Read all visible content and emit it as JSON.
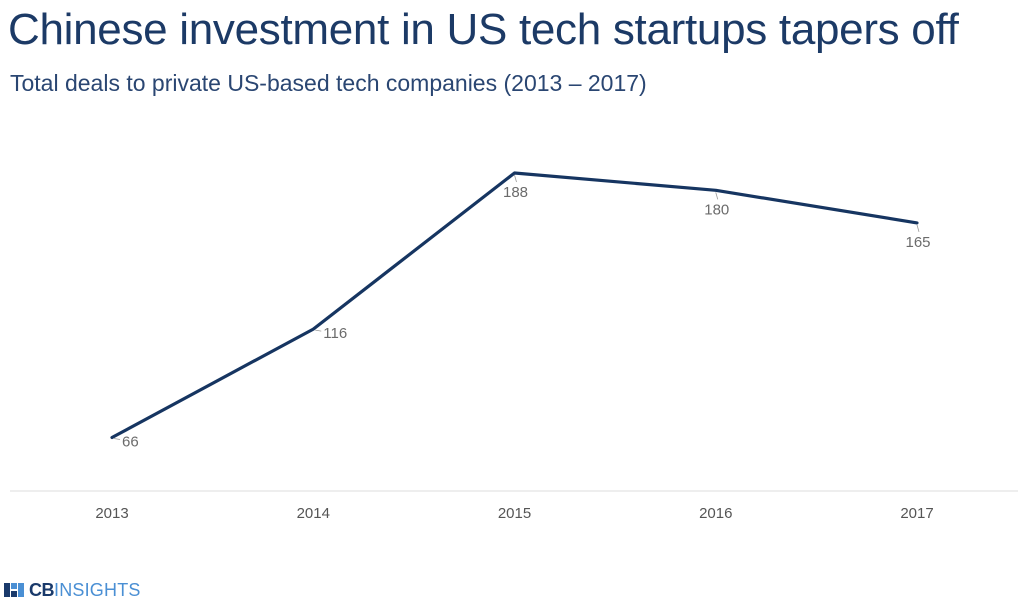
{
  "chart_data": {
    "type": "line",
    "title": "Chinese investment in US tech startups tapers off",
    "subtitle": "Total deals to private US-based tech companies (2013 – 2017)",
    "categories": [
      "2013",
      "2014",
      "2015",
      "2016",
      "2017"
    ],
    "series": [
      {
        "name": "Total deals",
        "values": [
          66,
          116,
          188,
          180,
          165
        ]
      }
    ],
    "xlabel": "",
    "ylabel": "",
    "ylim": [
      0,
      200
    ],
    "grid": false,
    "line_color": "#163561"
  },
  "branding": {
    "logo_text_bold": "CB",
    "logo_text_light": "INSIGHTS",
    "logo_color": "#1a3a6b",
    "logo_accent": "#4a8fd4"
  }
}
